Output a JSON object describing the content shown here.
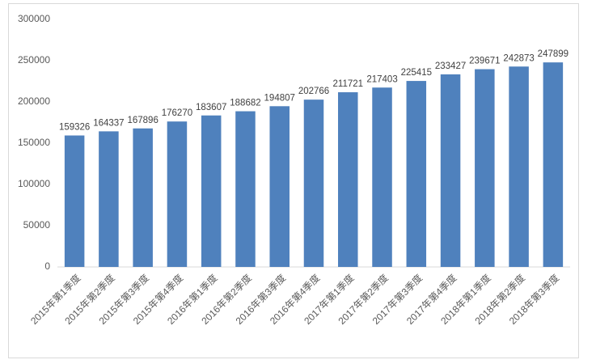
{
  "chart_data": {
    "type": "bar",
    "categories": [
      "2015年第1季度",
      "2015年第2季度",
      "2015年第3季度",
      "2015年第4季度",
      "2016年第1季度",
      "2016年第2季度",
      "2016年第3季度",
      "2016年第4季度",
      "2017年第1季度",
      "2017年第2季度",
      "2017年第3季度",
      "2017年第4季度",
      "2018年第1季度",
      "2018年第2季度",
      "2018年第3季度"
    ],
    "values": [
      159326,
      164337,
      167896,
      176270,
      183607,
      188682,
      194807,
      202766,
      211721,
      217403,
      225415,
      233427,
      239671,
      242873,
      247899
    ],
    "color": "#4f81bd",
    "ylim": [
      0,
      300000
    ],
    "yticks": [
      0,
      50000,
      100000,
      150000,
      200000,
      250000,
      300000
    ],
    "grid": false
  }
}
